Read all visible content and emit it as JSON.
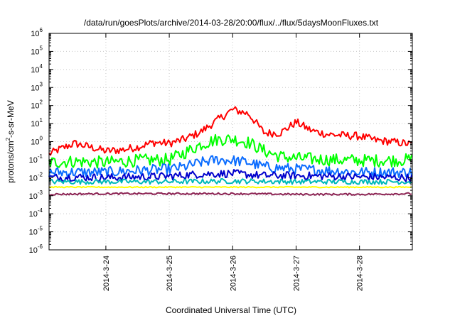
{
  "chart_data": {
    "type": "line",
    "title": "/data/run/goesPlots/archive/2014-03-28/20:00/flux/../flux/5daysMoonFluxes.txt",
    "xlabel": "Coordinated Universal Time (UTC)",
    "ylabel": "protons/cm2-s-sr-MeV",
    "ylabel_parts": [
      "protons/cm",
      "2",
      "-s-sr-MeV"
    ],
    "yscale": "log",
    "ylim_exponents": [
      -6,
      6
    ],
    "y_tick_exponents": [
      -6,
      -5,
      -4,
      -3,
      -2,
      -1,
      0,
      1,
      2,
      3,
      4,
      5,
      6
    ],
    "y_tick_base": "10",
    "x_range_days": [
      "2014-03-23 02:30",
      "2014-03-28 20:00"
    ],
    "x_ticks": [
      "2014-3-24",
      "2014-3-25",
      "2014-3-26",
      "2014-3-27",
      "2014-3-28"
    ],
    "grid": true,
    "series": [
      {
        "color": "#ff0000",
        "x": [
          "2014-03-23 02:30",
          "2014-03-23 06:00",
          "2014-03-23 12:00",
          "2014-03-23 18:00",
          "2014-03-24 00:00",
          "2014-03-24 06:00",
          "2014-03-24 12:00",
          "2014-03-24 18:00",
          "2014-03-25 00:00",
          "2014-03-25 06:00",
          "2014-03-25 12:00",
          "2014-03-25 18:00",
          "2014-03-26 00:00",
          "2014-03-26 06:00",
          "2014-03-26 12:00",
          "2014-03-26 18:00",
          "2014-03-27 00:00",
          "2014-03-27 06:00",
          "2014-03-27 12:00",
          "2014-03-27 18:00",
          "2014-03-28 00:00",
          "2014-03-28 06:00",
          "2014-03-28 12:00",
          "2014-03-28 20:00"
        ],
        "values": [
          0.2,
          0.35,
          0.8,
          0.5,
          0.3,
          0.35,
          0.5,
          0.9,
          0.8,
          1.4,
          3.5,
          15,
          60,
          35,
          3,
          3,
          12,
          4,
          2.5,
          2.2,
          2,
          1.2,
          1,
          0.7
        ]
      },
      {
        "color": "#00ff00",
        "x": [
          "2014-03-23 02:30",
          "2014-03-23 12:00",
          "2014-03-24 00:00",
          "2014-03-24 12:00",
          "2014-03-25 00:00",
          "2014-03-25 06:00",
          "2014-03-25 12:00",
          "2014-03-25 18:00",
          "2014-03-26 00:00",
          "2014-03-26 06:00",
          "2014-03-26 12:00",
          "2014-03-26 18:00",
          "2014-03-27 00:00",
          "2014-03-27 12:00",
          "2014-03-28 00:00",
          "2014-03-28 12:00",
          "2014-03-28 20:00"
        ],
        "values": [
          0.07,
          0.08,
          0.07,
          0.09,
          0.1,
          0.25,
          0.7,
          1.3,
          1.4,
          0.9,
          0.3,
          0.15,
          0.12,
          0.1,
          0.09,
          0.09,
          0.1
        ]
      },
      {
        "color": "#0a6cff",
        "x": [
          "2014-03-23 02:30",
          "2014-03-23 12:00",
          "2014-03-24 00:00",
          "2014-03-24 12:00",
          "2014-03-25 00:00",
          "2014-03-25 06:00",
          "2014-03-25 12:00",
          "2014-03-25 18:00",
          "2014-03-26 00:00",
          "2014-03-26 06:00",
          "2014-03-26 12:00",
          "2014-03-27 00:00",
          "2014-03-27 12:00",
          "2014-03-28 00:00",
          "2014-03-28 20:00"
        ],
        "values": [
          0.02,
          0.02,
          0.02,
          0.025,
          0.03,
          0.04,
          0.07,
          0.1,
          0.09,
          0.07,
          0.04,
          0.03,
          0.025,
          0.02,
          0.02
        ]
      },
      {
        "color": "#0000cc",
        "x": [
          "2014-03-23 02:30",
          "2014-03-23 12:00",
          "2014-03-24 00:00",
          "2014-03-24 12:00",
          "2014-03-25 00:00",
          "2014-03-25 12:00",
          "2014-03-26 00:00",
          "2014-03-26 12:00",
          "2014-03-27 00:00",
          "2014-03-27 12:00",
          "2014-03-28 00:00",
          "2014-03-28 20:00"
        ],
        "values": [
          0.01,
          0.011,
          0.01,
          0.011,
          0.012,
          0.016,
          0.017,
          0.013,
          0.013,
          0.012,
          0.011,
          0.01
        ]
      },
      {
        "color": "#00b8b8",
        "x": [
          "2014-03-23 02:30",
          "2014-03-24 00:00",
          "2014-03-25 00:00",
          "2014-03-26 00:00",
          "2014-03-27 00:00",
          "2014-03-28 00:00",
          "2014-03-28 20:00"
        ],
        "values": [
          0.006,
          0.006,
          0.006,
          0.0065,
          0.006,
          0.006,
          0.006
        ]
      },
      {
        "color": "#ffff00",
        "x": [
          "2014-03-23 02:30",
          "2014-03-24 00:00",
          "2014-03-25 00:00",
          "2014-03-26 00:00",
          "2014-03-27 00:00",
          "2014-03-28 00:00",
          "2014-03-28 20:00"
        ],
        "values": [
          0.003,
          0.003,
          0.003,
          0.003,
          0.003,
          0.003,
          0.003
        ]
      },
      {
        "color": "#8b2252",
        "x": [
          "2014-03-23 02:30",
          "2014-03-24 00:00",
          "2014-03-25 00:00",
          "2014-03-26 00:00",
          "2014-03-27 00:00",
          "2014-03-28 00:00",
          "2014-03-28 20:00"
        ],
        "values": [
          0.0012,
          0.0013,
          0.0013,
          0.0013,
          0.0012,
          0.0012,
          0.0013
        ]
      }
    ]
  }
}
